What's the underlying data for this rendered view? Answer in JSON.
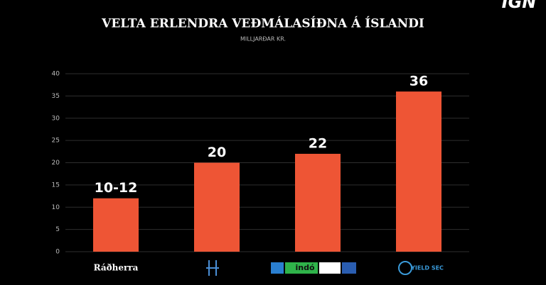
{
  "chart_data": {
    "type": "bar",
    "title": "VELTA ERLENDRA VEÐMÁLASÍÐNA Á ÍSLANDI",
    "subtitle": "MILLJARÐAR KR.",
    "watermark": "IGN",
    "categories": [
      "Ráðherra",
      null,
      "indó",
      "YIELD SEC"
    ],
    "values": [
      12,
      20,
      22,
      36
    ],
    "value_labels": [
      "10-12",
      "20",
      "22",
      "36"
    ],
    "color": "#ee5535",
    "ylim": [
      0,
      40
    ],
    "yticks": [
      0,
      5,
      10,
      15,
      20,
      25,
      30,
      35,
      40
    ],
    "grid": true
  }
}
